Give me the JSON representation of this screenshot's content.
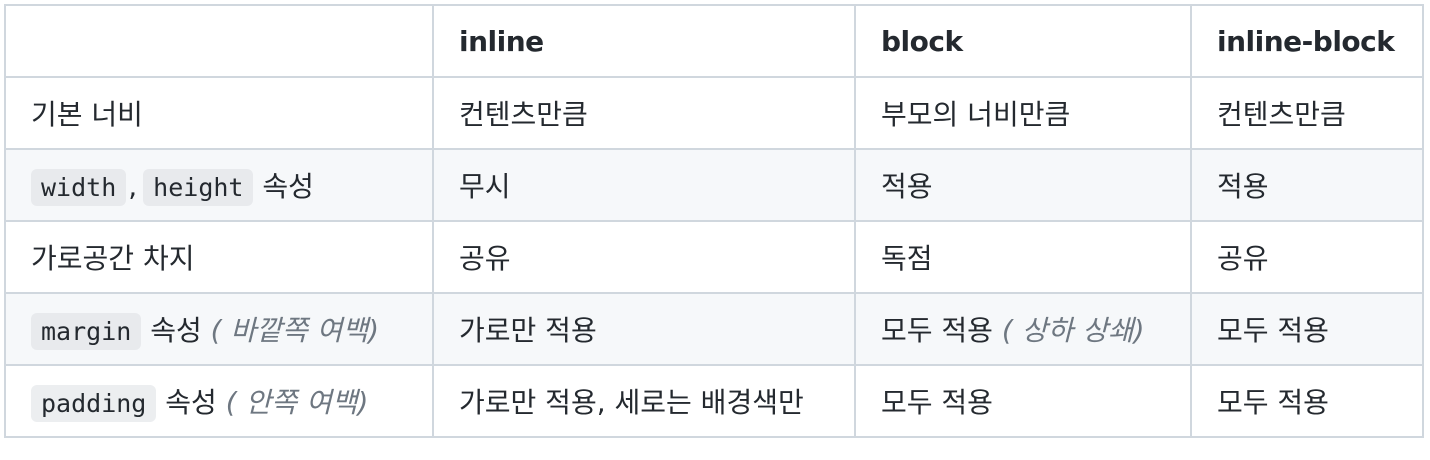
{
  "table": {
    "headers": [
      "",
      "inline",
      "block",
      "inline-block"
    ],
    "rows": [
      {
        "label": {
          "text": "기본 너비"
        },
        "inline": "컨텐츠만큼",
        "block": {
          "text": "부모의 너비만큼",
          "note": ""
        },
        "inline_block": "컨텐츠만큼"
      },
      {
        "label": {
          "code1": "width",
          "sep": ",",
          "code2": "height",
          "text": "속성"
        },
        "inline": "무시",
        "block": {
          "text": "적용",
          "note": ""
        },
        "inline_block": "적용"
      },
      {
        "label": {
          "text": "가로공간 차지"
        },
        "inline": "공유",
        "block": {
          "text": "독점",
          "note": ""
        },
        "inline_block": "공유"
      },
      {
        "label": {
          "code1": "margin",
          "text": "속성",
          "note": "( 바깥쪽 여백)"
        },
        "inline": "가로만 적용",
        "block": {
          "text": "모두 적용",
          "note": "( 상하 상쇄)"
        },
        "inline_block": "모두 적용"
      },
      {
        "label": {
          "code1": "padding",
          "text": "속성",
          "note": "( 안쪽 여백)"
        },
        "inline": "가로만 적용, 세로는 배경색만",
        "block": {
          "text": "모두 적용",
          "note": ""
        },
        "inline_block": "모두 적용"
      }
    ]
  }
}
